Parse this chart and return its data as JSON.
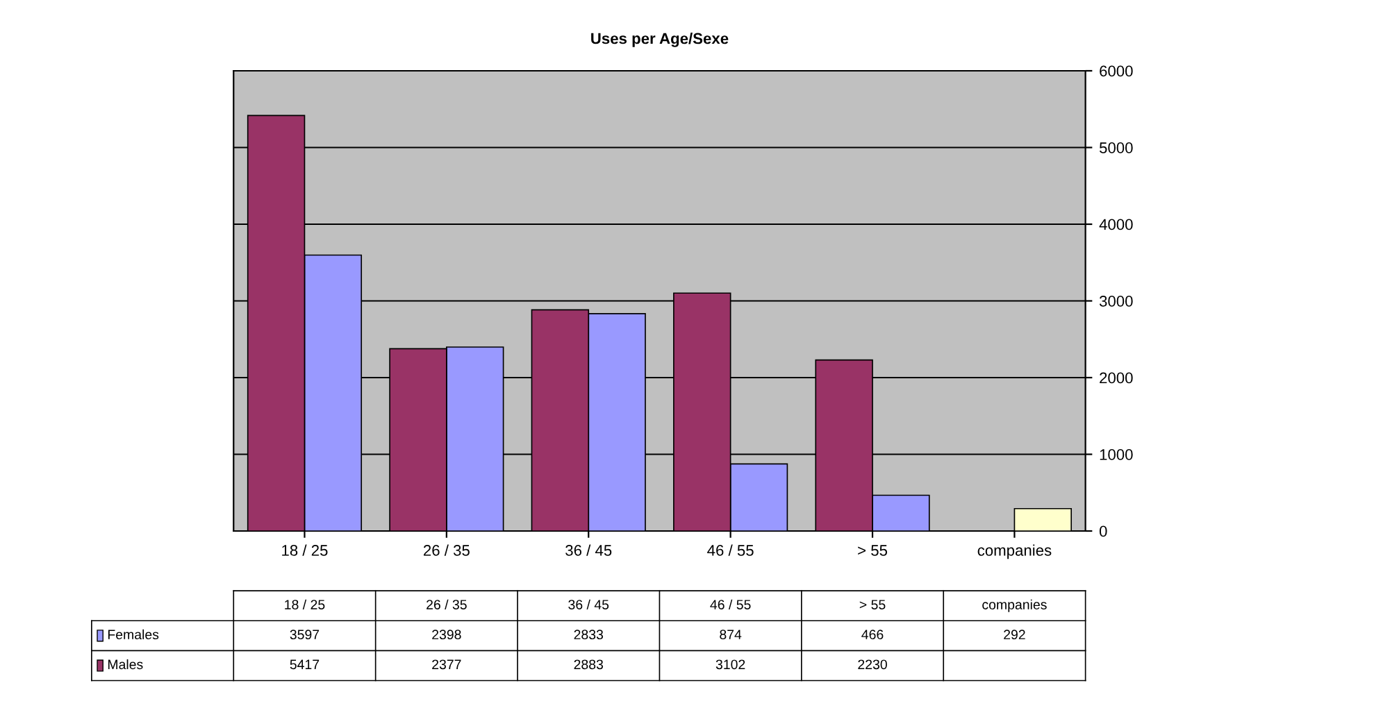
{
  "chart_data": {
    "type": "bar",
    "title": "Uses per Age/Sexe",
    "categories": [
      "18 / 25",
      "26 / 35",
      "36 / 45",
      "46 / 55",
      "> 55",
      "companies"
    ],
    "series": [
      {
        "name": "Females",
        "color": "#9999ff",
        "colors": [
          "#9999ff",
          "#9999ff",
          "#9999ff",
          "#9999ff",
          "#9999ff",
          "#ffffcc"
        ],
        "values": [
          3597,
          2398,
          2833,
          874,
          466,
          292
        ]
      },
      {
        "name": "Males",
        "color": "#993366",
        "values": [
          5417,
          2377,
          2883,
          3102,
          2230,
          null
        ]
      }
    ],
    "ylim": [
      0,
      6000
    ],
    "yticks": [
      0,
      1000,
      2000,
      3000,
      4000,
      5000,
      6000
    ],
    "grid": "y",
    "data_labels": true,
    "legend": "bottom left"
  }
}
